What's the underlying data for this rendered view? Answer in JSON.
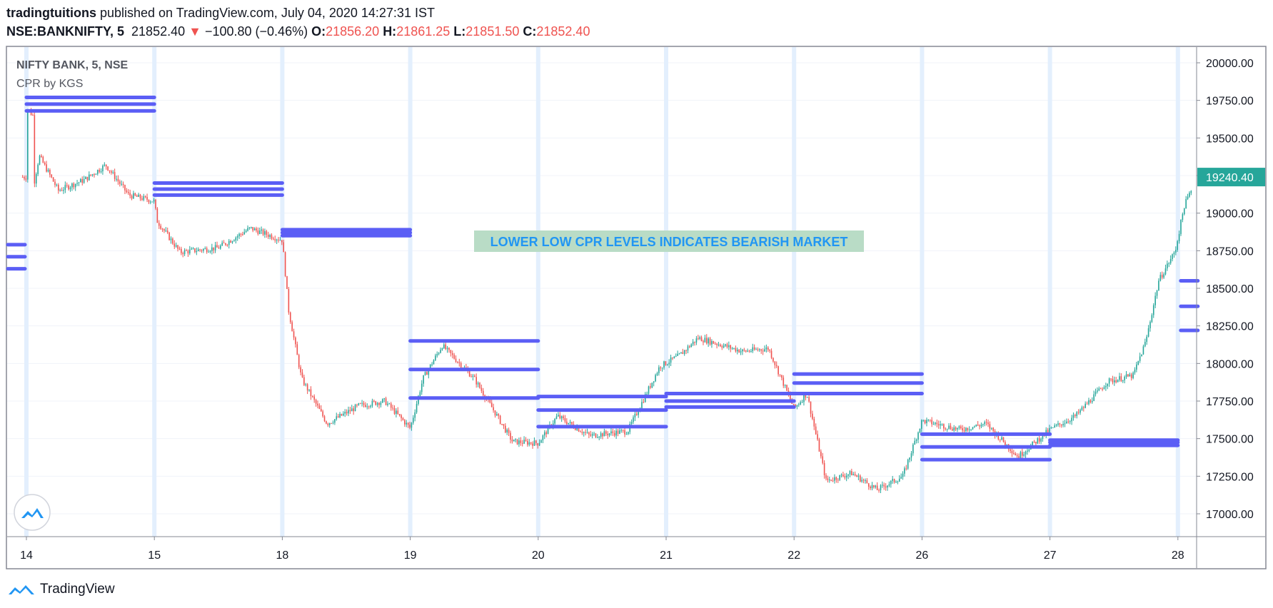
{
  "header": {
    "publisher": "tradingtuitions",
    "published_text": " published on TradingView.com, July 04, 2020 14:27:31 IST",
    "symbol": "NSE:BANKNIFTY, 5",
    "last_price": "21852.40",
    "down_arrow": "▼",
    "change": "−100.80 (−0.46%)",
    "o_label": "O:",
    "o_value": "21856.20",
    "h_label": "H:",
    "h_value": "21861.25",
    "l_label": "L:",
    "l_value": "21851.50",
    "c_label": "C:",
    "c_value": "21852.40"
  },
  "footer": {
    "brand": "TradingView"
  },
  "colors": {
    "cpr": "#5b5ef5",
    "up": "#26a69a",
    "down": "#ef5350",
    "annotation_bg": "#b9dcc6",
    "annotation_text": "#2196f3",
    "price_tag": "#26a69a"
  },
  "chart_data": {
    "type": "candlestick",
    "title": "NIFTY BANK, 5, NSE",
    "indicator": "CPR by KGS",
    "annotation": "LOWER LOW CPR LEVELS INDICATES BEARISH MARKET",
    "last_price_label": "19240.40",
    "ylim": [
      16850,
      20100
    ],
    "y_ticks": [
      17000,
      17250,
      17500,
      17750,
      18000,
      18250,
      18500,
      18750,
      19000,
      19250,
      19500,
      19750,
      20000
    ],
    "y_tick_labels": [
      "17000.00",
      "17250.00",
      "17500.00",
      "17750.00",
      "18000.00",
      "18250.00",
      "18500.00",
      "18750.00",
      "19000.00",
      "19250.00",
      "19500.00",
      "19750.00",
      "20000.00"
    ],
    "x_labels": [
      "14",
      "15",
      "18",
      "19",
      "20",
      "21",
      "22",
      "26",
      "27",
      "28"
    ],
    "grid": true,
    "price_path": [
      {
        "session": 0,
        "price": 19700
      },
      {
        "session": 0.05,
        "price": 19650
      },
      {
        "session": 0.06,
        "price": 19200
      },
      {
        "session": 0.1,
        "price": 19380
      },
      {
        "session": 0.25,
        "price": 19150
      },
      {
        "session": 0.45,
        "price": 19220
      },
      {
        "session": 0.62,
        "price": 19320
      },
      {
        "session": 0.8,
        "price": 19120
      },
      {
        "session": 1.0,
        "price": 19080
      },
      {
        "session": 1.02,
        "price": 18950
      },
      {
        "session": 1.2,
        "price": 18740
      },
      {
        "session": 1.5,
        "price": 18770
      },
      {
        "session": 1.75,
        "price": 18900
      },
      {
        "session": 2.0,
        "price": 18820
      },
      {
        "session": 2.05,
        "price": 18350
      },
      {
        "session": 2.15,
        "price": 17900
      },
      {
        "session": 2.35,
        "price": 17600
      },
      {
        "session": 2.6,
        "price": 17720
      },
      {
        "session": 2.8,
        "price": 17750
      },
      {
        "session": 3.0,
        "price": 17570
      },
      {
        "session": 3.1,
        "price": 17900
      },
      {
        "session": 3.25,
        "price": 18120
      },
      {
        "session": 3.5,
        "price": 17900
      },
      {
        "session": 3.8,
        "price": 17480
      },
      {
        "session": 4.0,
        "price": 17470
      },
      {
        "session": 4.15,
        "price": 17650
      },
      {
        "session": 4.4,
        "price": 17520
      },
      {
        "session": 4.7,
        "price": 17550
      },
      {
        "session": 4.95,
        "price": 17980
      },
      {
        "session": 5.1,
        "price": 18050
      },
      {
        "session": 5.25,
        "price": 18170
      },
      {
        "session": 5.6,
        "price": 18080
      },
      {
        "session": 5.8,
        "price": 18100
      },
      {
        "session": 6.0,
        "price": 17700
      },
      {
        "session": 6.1,
        "price": 17800
      },
      {
        "session": 6.25,
        "price": 17220
      },
      {
        "session": 6.45,
        "price": 17270
      },
      {
        "session": 6.65,
        "price": 17160
      },
      {
        "session": 6.85,
        "price": 17250
      },
      {
        "session": 7.0,
        "price": 17620
      },
      {
        "session": 7.3,
        "price": 17560
      },
      {
        "session": 7.5,
        "price": 17600
      },
      {
        "session": 7.75,
        "price": 17380
      },
      {
        "session": 8.0,
        "price": 17560
      },
      {
        "session": 8.2,
        "price": 17650
      },
      {
        "session": 8.45,
        "price": 17880
      },
      {
        "session": 8.65,
        "price": 17920
      },
      {
        "session": 8.75,
        "price": 18150
      },
      {
        "session": 8.85,
        "price": 18550
      },
      {
        "session": 8.98,
        "price": 18750
      },
      {
        "session": 9.05,
        "price": 19050
      },
      {
        "session": 9.15,
        "price": 19240
      }
    ],
    "cpr": [
      {
        "from": 0,
        "to": 1,
        "levels": [
          19770,
          19725,
          19680
        ]
      },
      {
        "from": 1,
        "to": 2,
        "levels": [
          19200,
          19160,
          19120
        ]
      },
      {
        "from": 2,
        "to": 3,
        "levels": [
          18890,
          18870,
          18850
        ]
      },
      {
        "from": 3,
        "to": 4,
        "levels": [
          18150,
          17960,
          17770
        ]
      },
      {
        "from": 4,
        "to": 5,
        "levels": [
          17780,
          17690,
          17580
        ]
      },
      {
        "from": 5,
        "to": 6,
        "levels": [
          17800,
          17750,
          17710
        ]
      },
      {
        "from": 6,
        "to": 7,
        "levels": [
          17930,
          17870,
          17800
        ]
      },
      {
        "from": 7,
        "to": 8,
        "levels": [
          17530,
          17445,
          17360
        ]
      },
      {
        "from": 8,
        "to": 9,
        "levels": [
          17490,
          17475,
          17455
        ]
      }
    ],
    "cpr_partial": [
      {
        "side": "left",
        "levels": [
          18790,
          18710,
          18630
        ]
      },
      {
        "side": "right",
        "levels": [
          18550,
          18380,
          18220
        ]
      }
    ]
  }
}
